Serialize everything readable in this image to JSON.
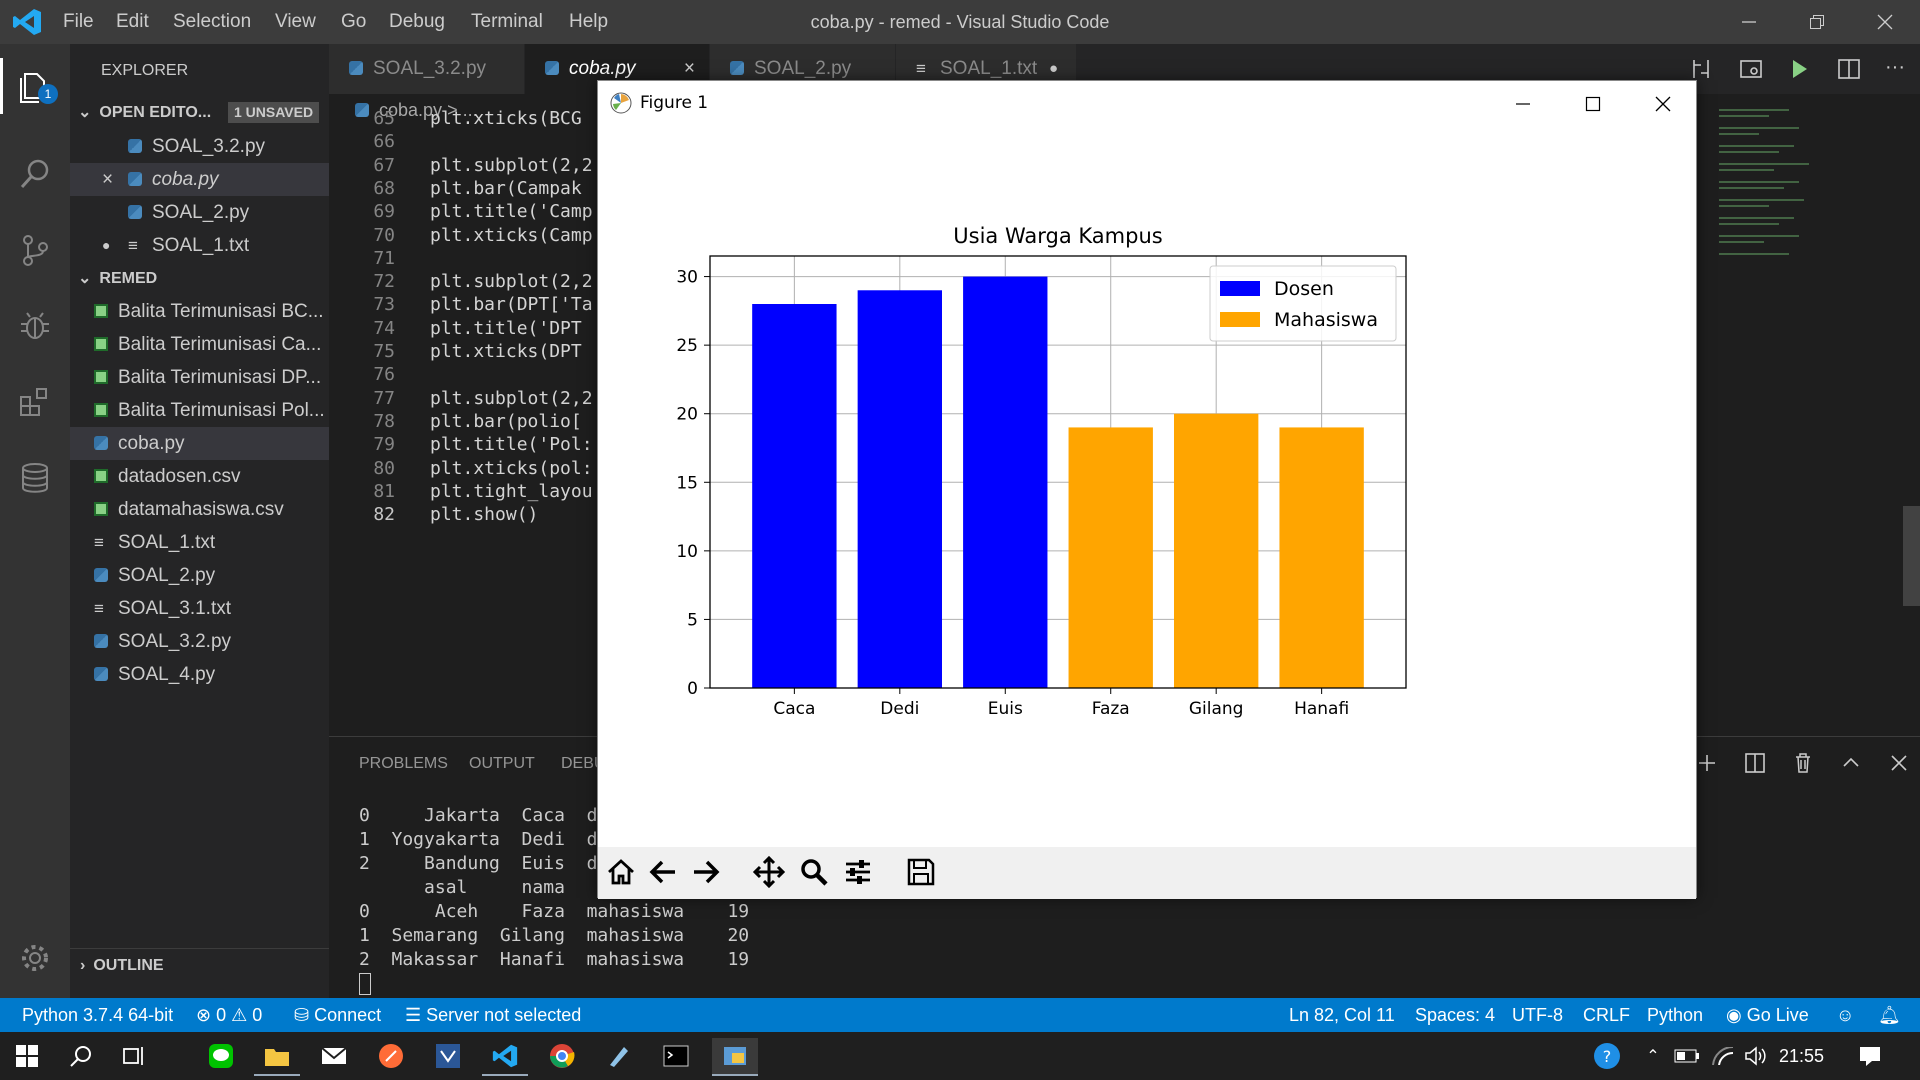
{
  "window": {
    "title": "coba.py - remed - Visual Studio Code",
    "menu": [
      "File",
      "Edit",
      "Selection",
      "View",
      "Go",
      "Debug",
      "Terminal",
      "Help"
    ]
  },
  "activity": {
    "explorer_badge": "1"
  },
  "sidebar": {
    "header": "EXPLORER",
    "open_editors": {
      "label": "OPEN EDITO...",
      "badge": "1 UNSAVED",
      "items": [
        {
          "name": "SOAL_3.2.py",
          "icon": "python-icon"
        },
        {
          "name": "coba.py",
          "icon": "python-icon",
          "marker": "×"
        },
        {
          "name": "SOAL_2.py",
          "icon": "python-icon"
        },
        {
          "name": "SOAL_1.txt",
          "icon": "text-icon",
          "marker": "●"
        }
      ]
    },
    "folder": {
      "label": "REMED",
      "items": [
        {
          "name": "Balita Terimunisasi BC...",
          "icon": "csv-icon"
        },
        {
          "name": "Balita Terimunisasi Ca...",
          "icon": "csv-icon"
        },
        {
          "name": "Balita Terimunisasi DP...",
          "icon": "csv-icon"
        },
        {
          "name": "Balita Terimunisasi Pol...",
          "icon": "csv-icon"
        },
        {
          "name": "coba.py",
          "icon": "python-icon"
        },
        {
          "name": "datadosen.csv",
          "icon": "csv-icon"
        },
        {
          "name": "datamahasiswa.csv",
          "icon": "csv-icon"
        },
        {
          "name": "SOAL_1.txt",
          "icon": "text-icon"
        },
        {
          "name": "SOAL_2.py",
          "icon": "python-icon"
        },
        {
          "name": "SOAL_3.1.txt",
          "icon": "text-icon"
        },
        {
          "name": "SOAL_3.2.py",
          "icon": "python-icon"
        },
        {
          "name": "SOAL_4.py",
          "icon": "python-icon"
        }
      ]
    },
    "outline": "OUTLINE"
  },
  "tabs": [
    {
      "label": "SOAL_3.2.py",
      "icon": "python-icon"
    },
    {
      "label": "coba.py",
      "icon": "python-icon",
      "close": "×"
    },
    {
      "label": "SOAL_2.py",
      "icon": "python-icon"
    },
    {
      "label": "SOAL_1.txt",
      "icon": "text-icon",
      "dirty": "●"
    }
  ],
  "breadcrumb": {
    "file": "coba.py",
    "sep": ">",
    "rest": "..."
  },
  "editor": {
    "lines": [
      {
        "n": "65",
        "code": "plt.xticks(BCG"
      },
      {
        "n": "66",
        "code": ""
      },
      {
        "n": "67",
        "code": "plt.subplot(2,2"
      },
      {
        "n": "68",
        "code": "plt.bar(Campak"
      },
      {
        "n": "69",
        "code": "plt.title('Camp"
      },
      {
        "n": "70",
        "code": "plt.xticks(Camp"
      },
      {
        "n": "71",
        "code": ""
      },
      {
        "n": "72",
        "code": "plt.subplot(2,2"
      },
      {
        "n": "73",
        "code": "plt.bar(DPT['Ta"
      },
      {
        "n": "74",
        "code": "plt.title('DPT "
      },
      {
        "n": "75",
        "code": "plt.xticks(DPT "
      },
      {
        "n": "76",
        "code": ""
      },
      {
        "n": "77",
        "code": "plt.subplot(2,2"
      },
      {
        "n": "78",
        "code": "plt.bar(polio["
      },
      {
        "n": "79",
        "code": "plt.title('Pol:"
      },
      {
        "n": "80",
        "code": "plt.xticks(pol:"
      },
      {
        "n": "81",
        "code": "plt.tight_layou"
      },
      {
        "n": "82",
        "code": "plt.show()"
      }
    ]
  },
  "panel": {
    "tabs": [
      "PROBLEMS",
      "OUTPUT",
      "DEBU"
    ],
    "terminal": [
      "0     Jakarta  Caca  d",
      "1  Yogyakarta  Dedi  d",
      "2     Bandung  Euis  d",
      "      asal     nama",
      "0      Aceh    Faza  mahasiswa    19",
      "1  Semarang  Gilang  mahasiswa    20",
      "2  Makassar  Hanafi  mahasiswa    19"
    ]
  },
  "status": {
    "python": "Python 3.7.4 64-bit",
    "errors": "0",
    "warnings": "0",
    "connect": "Connect",
    "server": "Server not selected",
    "position": "Ln 82, Col 11",
    "spaces": "Spaces: 4",
    "encoding": "UTF-8",
    "eol": "CRLF",
    "language": "Python",
    "golive": "Go Live"
  },
  "taskbar": {
    "time": "21:55"
  },
  "figure": {
    "title": "Figure 1",
    "colors": {
      "dosen": "#0000ff",
      "mahasiswa": "#ffa500"
    }
  },
  "chart_data": {
    "type": "bar",
    "title": "Usia Warga Kampus",
    "categories": [
      "Caca",
      "Dedi",
      "Euis",
      "Faza",
      "Gilang",
      "Hanafi"
    ],
    "series": [
      {
        "name": "Dosen",
        "color": "#0000ff",
        "values": [
          28,
          29,
          30,
          null,
          null,
          null
        ]
      },
      {
        "name": "Mahasiswa",
        "color": "#ffa500",
        "values": [
          null,
          null,
          null,
          19,
          20,
          19
        ]
      }
    ],
    "yticks": [
      "0",
      "5",
      "10",
      "15",
      "20",
      "25",
      "30"
    ],
    "ylim": [
      0,
      31.5
    ],
    "grid": true,
    "legend": "top-right",
    "xlabel": "",
    "ylabel": ""
  }
}
